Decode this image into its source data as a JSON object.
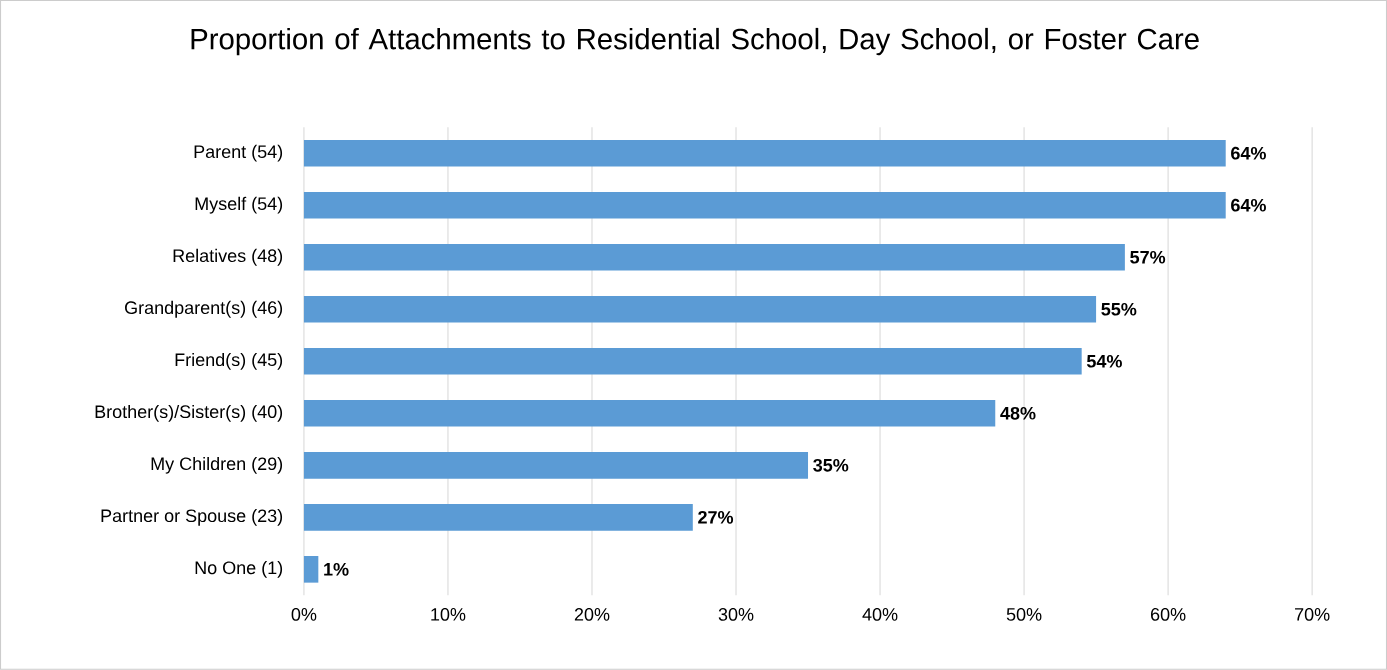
{
  "chart_data": {
    "type": "bar",
    "orientation": "horizontal",
    "title": "Proportion of Attachments to Residential School, Day School,  or Foster Care",
    "categories": [
      "Parent (54)",
      "Myself (54)",
      "Relatives (48)",
      "Grandparent(s) (46)",
      "Friend(s) (45)",
      "Brother(s)/Sister(s) (40)",
      "My Children (29)",
      "Partner or Spouse (23)",
      "No One (1)"
    ],
    "values": [
      64,
      64,
      57,
      55,
      54,
      48,
      35,
      27,
      1
    ],
    "value_labels": [
      "64%",
      "64%",
      "57%",
      "55%",
      "54%",
      "48%",
      "35%",
      "27%",
      "1%"
    ],
    "color": "#5b9bd5",
    "xlim": [
      0,
      70
    ],
    "xticks": [
      {
        "value": 0,
        "label": "0%"
      },
      {
        "value": 10,
        "label": "10%"
      },
      {
        "value": 20,
        "label": "20%"
      },
      {
        "value": 30,
        "label": "30%"
      },
      {
        "value": 40,
        "label": "40%"
      },
      {
        "value": 50,
        "label": "50%"
      },
      {
        "value": 60,
        "label": "60%"
      },
      {
        "value": 70,
        "label": "70%"
      }
    ],
    "grid": "x"
  }
}
